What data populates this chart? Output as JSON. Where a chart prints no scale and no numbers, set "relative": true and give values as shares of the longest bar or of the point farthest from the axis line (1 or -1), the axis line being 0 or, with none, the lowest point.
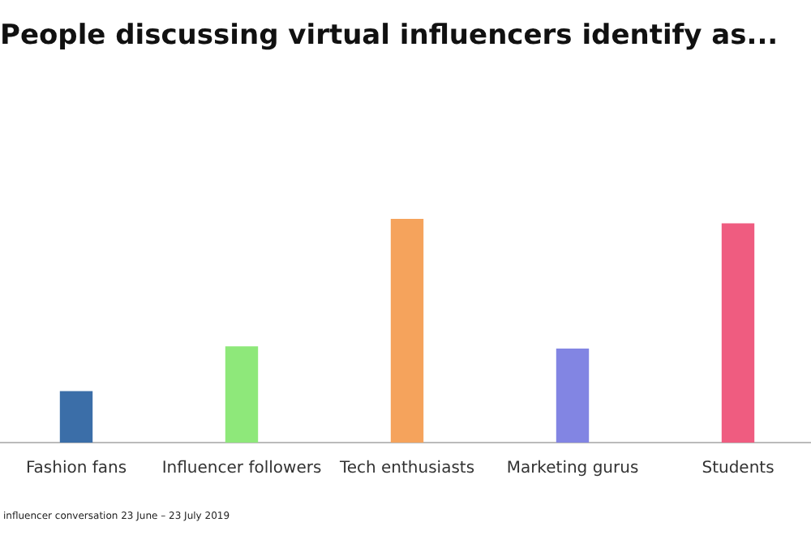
{
  "chart_data": {
    "type": "bar",
    "title": "People discussing virtual influencers identify as...",
    "categories": [
      "Fashion fans",
      "Influencer followers",
      "Tech enthusiasts",
      "Marketing gurus",
      "Students"
    ],
    "values": [
      0.23,
      0.43,
      1,
      0.42,
      0.98
    ],
    "colors": [
      "#3b6ea8",
      "#8ee87a",
      "#f5a35c",
      "#8285e3",
      "#ef5c80"
    ],
    "relative": true,
    "grid": false,
    "legend": false,
    "annotations": [
      "influencer conversation 23 June – 23 July 2019"
    ]
  }
}
